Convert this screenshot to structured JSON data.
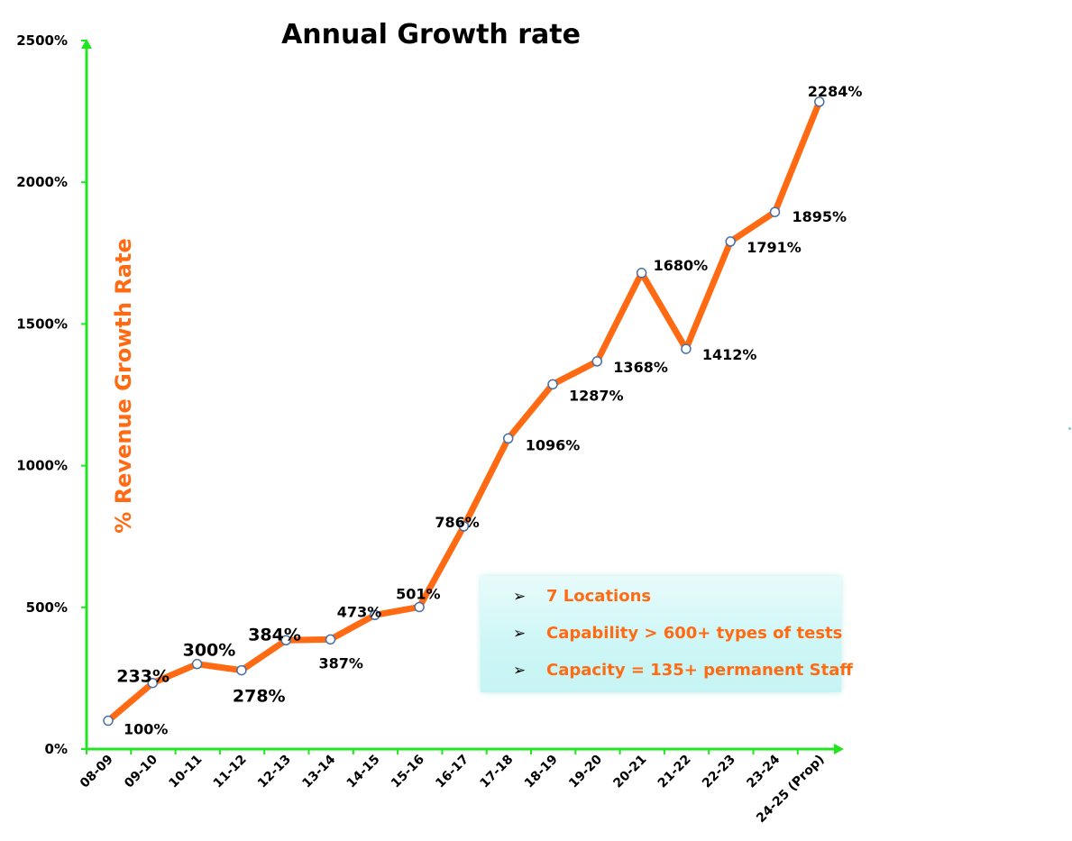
{
  "chart_data": {
    "type": "line",
    "title": "Annual Growth rate",
    "ylabel": "% Revenue Growth Rate",
    "xlabel": "",
    "ylim": [
      0,
      2500
    ],
    "yticks": [
      0,
      500,
      1000,
      1500,
      2000,
      2500
    ],
    "ytick_labels": [
      "0%",
      "500%",
      "1000%",
      "1500%",
      "2000%",
      "2500%"
    ],
    "categories": [
      "08-09",
      "09-10",
      "10-11",
      "11-12",
      "12-13",
      "13-14",
      "14-15",
      "15-16",
      "16-17",
      "17-18",
      "18-19",
      "19-20",
      "20-21",
      "21-22",
      "22-23",
      "23-24",
      "24-25 (Prop)"
    ],
    "values": [
      100,
      233,
      300,
      278,
      384,
      387,
      473,
      501,
      786,
      1096,
      1287,
      1368,
      1680,
      1412,
      1791,
      1895,
      2284
    ],
    "data_labels": [
      "100%",
      "233%",
      "300%",
      "278%",
      "384%",
      "387%",
      "473%",
      "501%",
      "786%",
      "1096%",
      "1287%",
      "1368%",
      "1680%",
      "1412%",
      "1791%",
      "1895%",
      "2284%"
    ],
    "grid": false,
    "colors": {
      "line": "#ff6a13",
      "axis": "#22e522",
      "marker_fill": "#ffffff",
      "marker_stroke": "#4a6fa5"
    }
  },
  "info_box": {
    "items": [
      {
        "bullet": "➢",
        "text": "7 Locations"
      },
      {
        "bullet": "➢",
        "text": "Capability > 600+ types of tests"
      },
      {
        "bullet": "➢",
        "text": "Capacity = 135+ permanent Staff"
      }
    ]
  }
}
